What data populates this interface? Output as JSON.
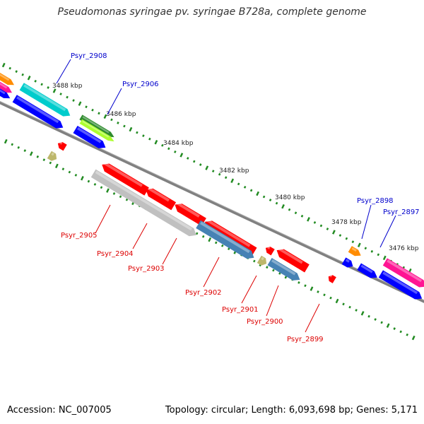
{
  "title": "Pseudomonas syringae pv. syringae B728a, complete genome",
  "footer": {
    "accession": "Accession: NC_007005",
    "summary": "Topology: circular; Length: 6,093,698 bp; Genes: 5,171"
  },
  "kbp_ticks": [
    {
      "label": "3488 kbp"
    },
    {
      "label": "3486 kbp"
    },
    {
      "label": "3484 kbp"
    },
    {
      "label": "3482 kbp"
    },
    {
      "label": "3480 kbp"
    },
    {
      "label": "3478 kbp"
    },
    {
      "label": "3476 kbp"
    }
  ],
  "gene_labels_top": [
    {
      "name": "Psyr_2908",
      "color": "#0000cc"
    },
    {
      "name": "Psyr_2906",
      "color": "#0000cc"
    },
    {
      "name": "Psyr_2898",
      "color": "#0000cc"
    },
    {
      "name": "Psyr_2897",
      "color": "#0000cc"
    }
  ],
  "gene_labels_bottom": [
    {
      "name": "Psyr_2905",
      "color": "#dd0000"
    },
    {
      "name": "Psyr_2904",
      "color": "#dd0000"
    },
    {
      "name": "Psyr_2903",
      "color": "#dd0000"
    },
    {
      "name": "Psyr_2902",
      "color": "#dd0000"
    },
    {
      "name": "Psyr_2901",
      "color": "#dd0000"
    },
    {
      "name": "Psyr_2900",
      "color": "#dd0000"
    },
    {
      "name": "Psyr_2899",
      "color": "#dd0000"
    }
  ],
  "colors": {
    "backbone": "#808080",
    "tick_green": "#228b22",
    "blue_gene": "#0000ff",
    "red_gene": "#ff0000",
    "gray_gene": "#c0c0c0",
    "steel_gene": "#4682b4",
    "cyan_gene": "#00cccc",
    "green_gene": "#2e8b2e",
    "lime_gene": "#adff2f",
    "orange_gene": "#ff8c00",
    "pink_gene": "#ff1493",
    "khaki_gene": "#bdb76b"
  }
}
